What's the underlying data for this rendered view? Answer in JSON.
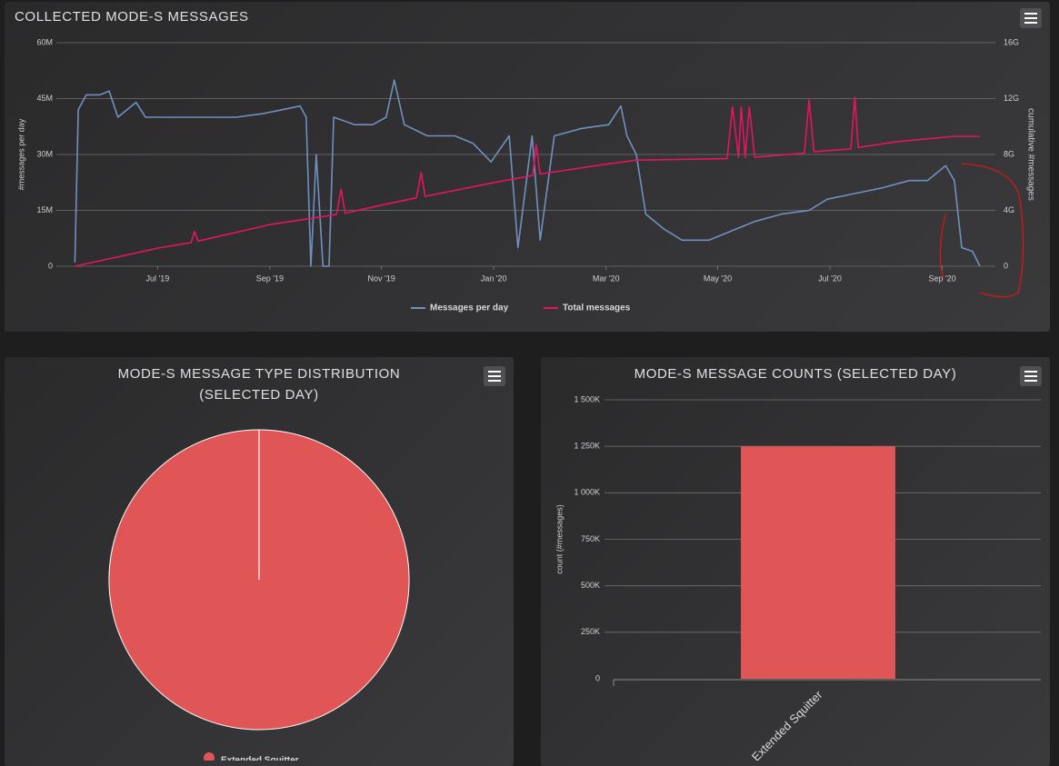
{
  "chart_data": [
    {
      "type": "line",
      "title": "COLLECTED MODE-S MESSAGES",
      "y_label": "#messages per day",
      "y2_label": "cumulative #messages",
      "xlim": [
        2019.34,
        2020.746
      ],
      "xticks": [
        {
          "value": 2019.5,
          "label": "Jul '19"
        },
        {
          "value": 2019.667,
          "label": "Sep '19"
        },
        {
          "value": 2019.833,
          "label": "Nov '19"
        },
        {
          "value": 2020,
          "label": "Jan '20"
        },
        {
          "value": 2020.167,
          "label": "Mar '20"
        },
        {
          "value": 2020.333,
          "label": "May '20"
        },
        {
          "value": 2020.5,
          "label": "Jul '20"
        },
        {
          "value": 2020.667,
          "label": "Sep '20"
        }
      ],
      "ylim": [
        0,
        60
      ],
      "yticks": [
        0,
        {
          "value": 15,
          "label": "15M"
        },
        {
          "value": 30,
          "label": "30M"
        },
        {
          "value": 45,
          "label": "45M"
        },
        {
          "value": 60,
          "label": "60M"
        }
      ],
      "y2lim": [
        0,
        16
      ],
      "y2ticks": [
        0,
        {
          "value": 4,
          "label": "4G"
        },
        {
          "value": 8,
          "label": "8G"
        },
        {
          "value": 12,
          "label": "12G"
        },
        {
          "value": 16,
          "label": "16G"
        }
      ],
      "grid": true,
      "legend": "bottom",
      "series": [
        {
          "name": "Messages per day",
          "color": "#7090c0",
          "x": [
            2019.377,
            2019.382,
            2019.394,
            2019.414,
            2019.428,
            2019.441,
            2019.468,
            2019.482,
            2019.509,
            2019.536,
            2019.577,
            2019.617,
            2019.658,
            2019.685,
            2019.712,
            2019.721,
            2019.728,
            2019.736,
            2019.746,
            2019.755,
            2019.762,
            2019.793,
            2019.82,
            2019.84,
            2019.852,
            2019.867,
            2019.901,
            2019.942,
            2019.969,
            2019.996,
            2020.023,
            2020.036,
            2020.057,
            2020.069,
            2020.09,
            2020.131,
            2020.171,
            2020.189,
            2020.198,
            2020.212,
            2020.226,
            2020.253,
            2020.28,
            2020.32,
            2020.347,
            2020.388,
            2020.428,
            2020.469,
            2020.496,
            2020.523,
            2020.55,
            2020.577,
            2020.618,
            2020.645,
            2020.672,
            2020.685,
            2020.696,
            2020.712,
            2020.723
          ],
          "values": [
            1,
            42,
            46,
            46,
            47,
            40,
            44,
            40,
            40,
            40,
            40,
            40,
            41,
            42,
            43,
            40,
            0,
            30,
            0,
            0,
            40,
            38,
            38,
            40,
            50,
            38,
            35,
            35,
            33,
            28,
            35,
            5,
            35,
            7,
            35,
            37,
            38,
            43,
            35,
            30,
            14,
            10,
            7,
            7,
            9,
            12,
            14,
            15,
            18,
            19,
            20,
            21,
            23,
            23,
            27,
            23,
            5,
            4,
            0
          ]
        },
        {
          "name": "Total messages",
          "color": "#e6145f",
          "axis": "y2",
          "x": [
            2019.377,
            2019.501,
            2019.55,
            2019.555,
            2019.56,
            2019.669,
            2019.766,
            2019.773,
            2019.779,
            2019.836,
            2019.885,
            2019.892,
            2019.898,
            2020.001,
            2020.058,
            2020.063,
            2020.069,
            2020.166,
            2020.212,
            2020.347,
            2020.355,
            2020.364,
            2020.368,
            2020.374,
            2020.38,
            2020.388,
            2020.462,
            2020.469,
            2020.476,
            2020.531,
            2020.537,
            2020.542,
            2020.597,
            2020.618,
            2020.685,
            2020.723
          ],
          "values": [
            0,
            1.3,
            1.7,
            2.5,
            1.8,
            3.0,
            3.7,
            5.5,
            3.8,
            4.4,
            4.9,
            6.7,
            5.0,
            6.0,
            6.5,
            8.7,
            6.6,
            7.3,
            7.6,
            7.7,
            11.4,
            7.8,
            11.4,
            7.8,
            11.4,
            7.8,
            8.1,
            11.9,
            8.2,
            8.4,
            12.1,
            8.5,
            8.9,
            9.0,
            9.3,
            9.3
          ]
        }
      ]
    },
    {
      "type": "pie",
      "title": "MODE-S MESSAGE TYPE DISTRIBUTION (SELECTED DAY)",
      "categories": [
        "Extended Squitter"
      ],
      "values": [
        1250000
      ],
      "colors": [
        "#e05555"
      ],
      "legend": "bottom"
    },
    {
      "type": "bar",
      "title": "MODE-S MESSAGE COUNTS (SELECTED DAY)",
      "y_label": "count (#messages)",
      "categories": [
        "Extended Squitter"
      ],
      "values": [
        1250000
      ],
      "color": "#e05555",
      "ylim": [
        0,
        1500000
      ],
      "yticks": [
        0,
        {
          "value": 250000,
          "label": "250K"
        },
        {
          "value": 500000,
          "label": "500K"
        },
        {
          "value": 750000,
          "label": "750K"
        },
        {
          "value": 1000000,
          "label": "1 000K"
        },
        {
          "value": 1250000,
          "label": "1 250K"
        },
        {
          "value": 1500000,
          "label": "1 500K"
        }
      ],
      "grid": true
    }
  ]
}
